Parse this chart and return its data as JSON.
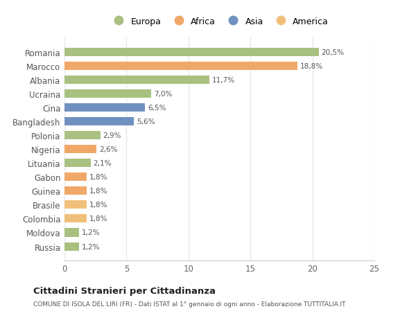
{
  "categories": [
    "Russia",
    "Moldova",
    "Colombia",
    "Brasile",
    "Guinea",
    "Gabon",
    "Lituania",
    "Nigeria",
    "Polonia",
    "Bangladesh",
    "Cina",
    "Ucraina",
    "Albania",
    "Marocco",
    "Romania"
  ],
  "values": [
    1.2,
    1.2,
    1.8,
    1.8,
    1.8,
    1.8,
    2.1,
    2.6,
    2.9,
    5.6,
    6.5,
    7.0,
    11.7,
    18.8,
    20.5
  ],
  "labels": [
    "1,2%",
    "1,2%",
    "1,8%",
    "1,8%",
    "1,8%",
    "1,8%",
    "2,1%",
    "2,6%",
    "2,9%",
    "5,6%",
    "6,5%",
    "7,0%",
    "11,7%",
    "18,8%",
    "20,5%"
  ],
  "colors": [
    "#a8c080",
    "#a8c080",
    "#f0c07a",
    "#f0c07a",
    "#f0a868",
    "#f0a868",
    "#a8c080",
    "#f0a868",
    "#a8c080",
    "#7090c0",
    "#7090c0",
    "#a8c080",
    "#a8c080",
    "#f0a868",
    "#a8c080"
  ],
  "legend_labels": [
    "Europa",
    "Africa",
    "Asia",
    "America"
  ],
  "legend_colors": [
    "#a8c080",
    "#f0a868",
    "#7090c0",
    "#f0c07a"
  ],
  "title": "Cittadini Stranieri per Cittadinanza",
  "subtitle": "COMUNE DI ISOLA DEL LIRI (FR) - Dati ISTAT al 1° gennaio di ogni anno - Elaborazione TUTTITALIA.IT",
  "xlim": [
    0,
    25
  ],
  "xticks": [
    0,
    5,
    10,
    15,
    20,
    25
  ],
  "background_color": "#ffffff",
  "grid_color": "#e8e8e8",
  "bar_height": 0.6
}
